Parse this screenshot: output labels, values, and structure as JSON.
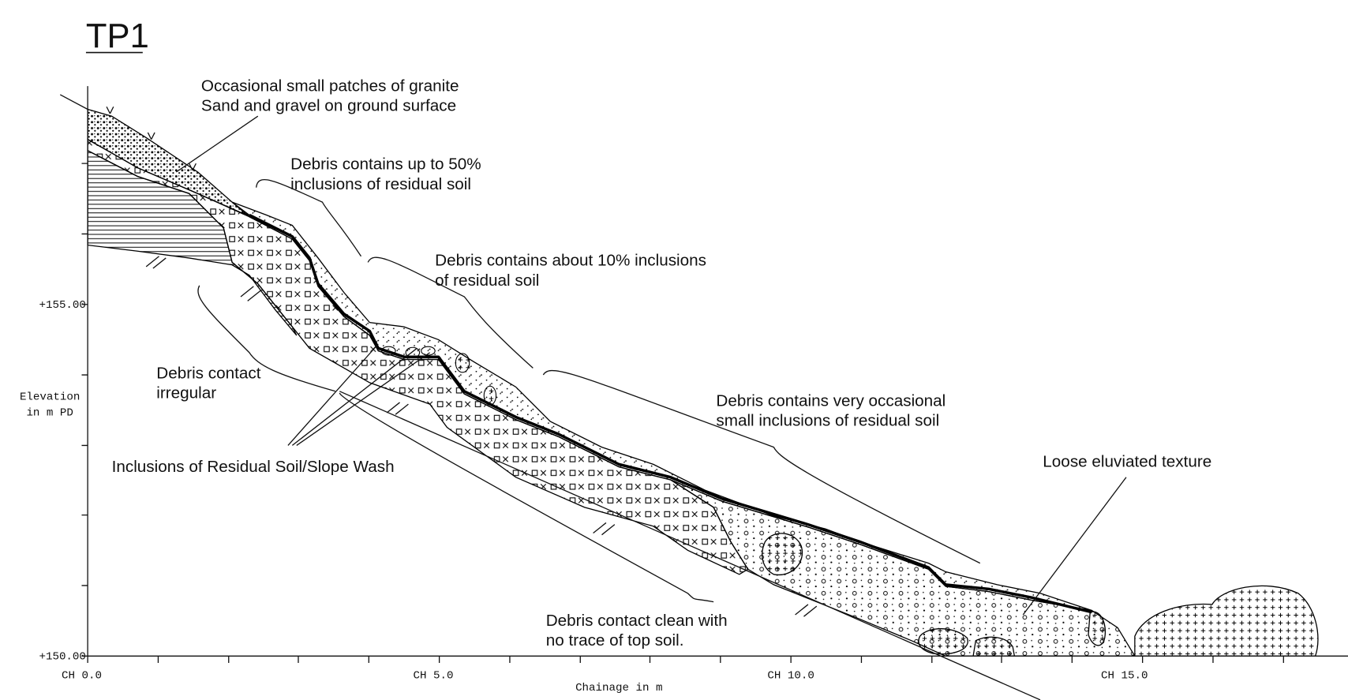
{
  "title": "TP1",
  "annotations": {
    "granite": [
      "Occasional small patches of granite",
      "Sand and gravel on ground surface"
    ],
    "debris_50": [
      "Debris contains up to 50%",
      "inclusions of residual soil"
    ],
    "debris_10": [
      "Debris contains about 10% inclusions",
      "of residual soil"
    ],
    "debris_occasional": [
      "Debris contains very occasional",
      "small inclusions of residual soil"
    ],
    "contact_irregular": [
      "Debris contact",
      "irregular"
    ],
    "inclusions": "Inclusions of Residual Soil/Slope Wash",
    "loose": "Loose eluviated texture",
    "contact_clean": [
      "Debris contact clean with",
      "no trace of top soil."
    ]
  },
  "y_axis": {
    "label": [
      "Elevation",
      "in m PD"
    ],
    "ticks": [
      "+155.00",
      "+150.00"
    ]
  },
  "x_axis": {
    "label": "Chainage in m",
    "ticks": [
      "CH 0.0",
      "CH 5.0",
      "CH 10.0",
      "CH 15.0"
    ]
  }
}
